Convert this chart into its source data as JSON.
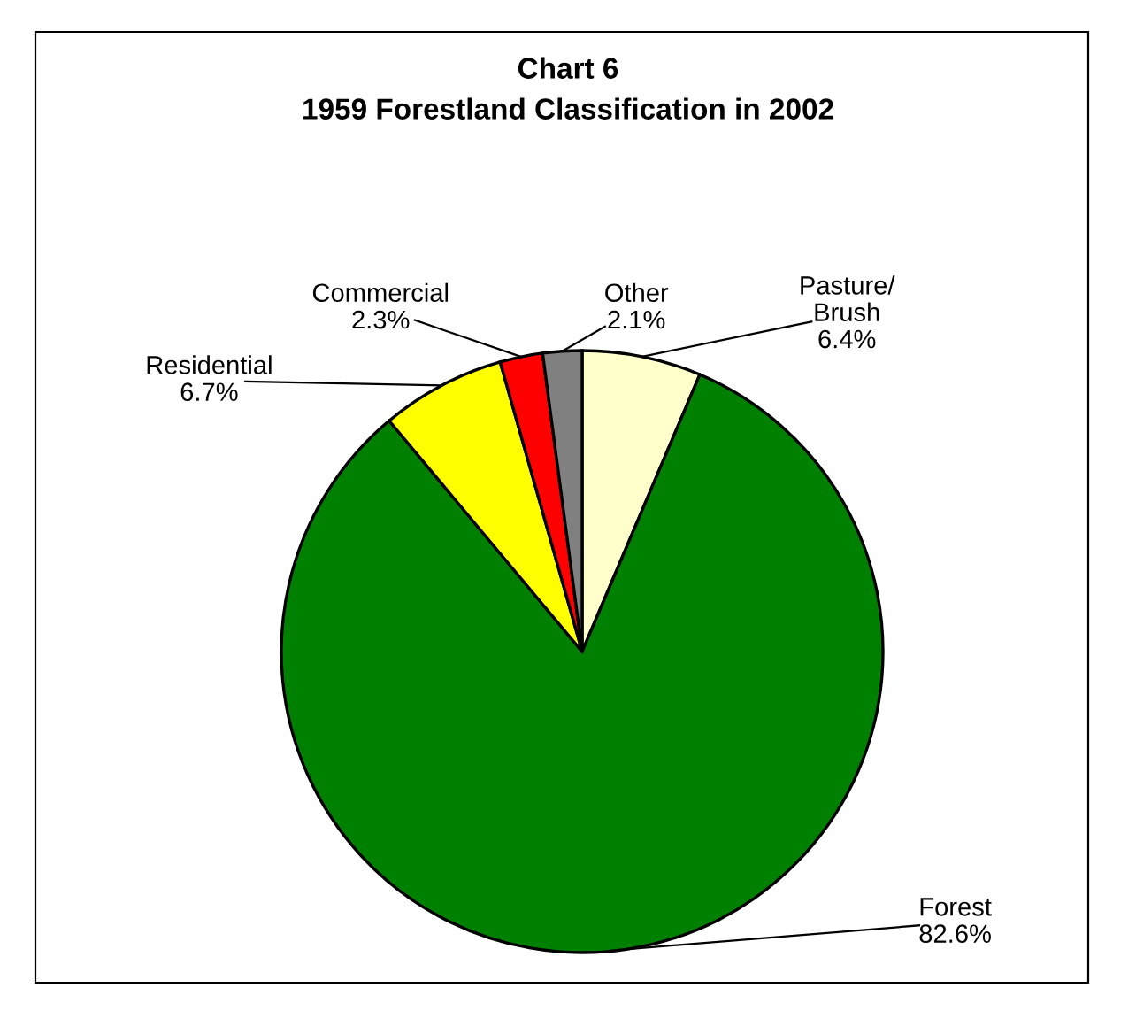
{
  "chart_data": {
    "type": "pie",
    "title": "Chart 6",
    "subtitle": "1959 Forestland Classification in 2002",
    "categories": [
      "Pasture/\nBrush",
      "Forest",
      "Residential",
      "Commercial",
      "Other"
    ],
    "values": [
      6.4,
      82.6,
      6.7,
      2.3,
      2.1
    ],
    "value_labels": [
      "6.4%",
      "82.6%",
      "6.7%",
      "2.3%",
      "2.1%"
    ],
    "colors": [
      "#ffffcc",
      "#008000",
      "#ffff00",
      "#ff0000",
      "#808080"
    ],
    "legend": false
  }
}
